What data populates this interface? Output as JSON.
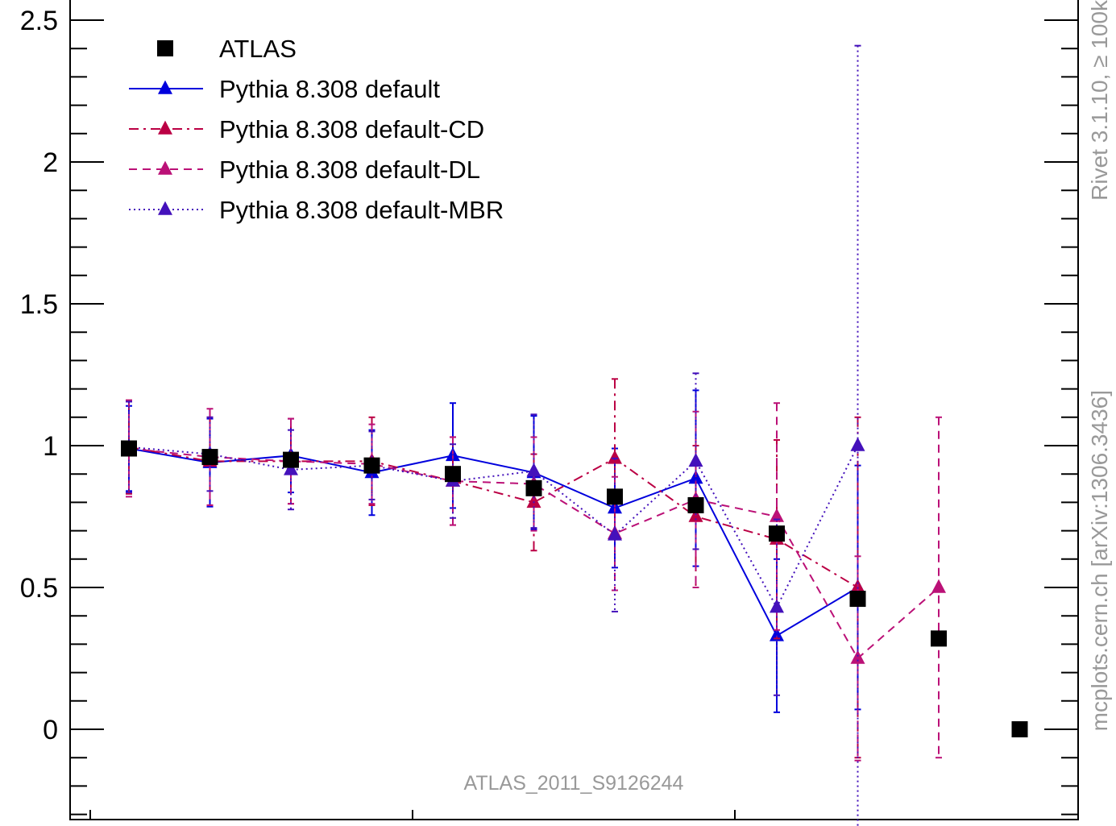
{
  "chart_data": {
    "type": "line",
    "title": "",
    "xlabel": "",
    "ylabel": "",
    "x": [
      1,
      2,
      3,
      4,
      5,
      6,
      7,
      8,
      9,
      10,
      11,
      12
    ],
    "ylim": [
      -0.3,
      2.55
    ],
    "y_ticks": [
      0,
      0.5,
      1,
      1.5,
      2,
      2.5
    ],
    "y_tick_labels": [
      "0",
      "0.5",
      "1",
      "1.5",
      "2",
      "2.5"
    ],
    "grid": false,
    "legend_position": "top-left",
    "annotation": "ATLAS_2011_S9126244",
    "side_labels": [
      "Rivet 3.1.10, ≥ 100k",
      "mcplots.cern.ch [arXiv:1306.3436]"
    ],
    "series": [
      {
        "name": "ATLAS",
        "color": "#000000",
        "marker": "square",
        "line": "none",
        "values": [
          0.99,
          0.96,
          0.95,
          0.93,
          0.9,
          0.85,
          0.82,
          0.79,
          0.69,
          0.46,
          0.32,
          0.0
        ],
        "errors": [
          0,
          0,
          0,
          0,
          0,
          0,
          0,
          0,
          0,
          0,
          0,
          0
        ]
      },
      {
        "name": "Pythia 8.308 default",
        "color": "#0000dd",
        "marker": "triangle",
        "line": "solid",
        "values": [
          0.99,
          0.94,
          0.965,
          0.905,
          0.965,
          0.905,
          0.78,
          0.885,
          0.33,
          0.5,
          null,
          null
        ],
        "errors": [
          0.15,
          0.155,
          0.13,
          0.15,
          0.185,
          0.2,
          0.21,
          0.31,
          0.27,
          0.43,
          null,
          null
        ]
      },
      {
        "name": "Pythia 8.308 default-CD",
        "color": "#bb0044",
        "marker": "triangle",
        "line": "dashdot",
        "values": [
          0.995,
          0.945,
          0.945,
          0.945,
          0.875,
          0.8,
          0.955,
          0.75,
          0.67,
          0.5,
          null,
          null
        ],
        "errors": [
          0.165,
          0.155,
          0.15,
          0.155,
          0.155,
          0.17,
          0.28,
          0.25,
          0.35,
          0.6,
          null,
          null
        ]
      },
      {
        "name": "Pythia 8.308 default-DL",
        "color": "#bb1177",
        "marker": "triangle",
        "line": "dashed",
        "values": [
          0.99,
          0.96,
          0.945,
          0.935,
          0.875,
          0.865,
          0.69,
          0.81,
          0.75,
          0.25,
          0.5,
          null
        ],
        "errors": [
          0.17,
          0.17,
          0.15,
          0.14,
          0.155,
          0.165,
          0.2,
          0.31,
          0.4,
          0.36,
          0.6,
          null
        ]
      },
      {
        "name": "Pythia 8.308 default-MBR",
        "color": "#4411bb",
        "marker": "triangle",
        "line": "dotted",
        "values": [
          0.995,
          0.97,
          0.915,
          0.93,
          0.875,
          0.91,
          0.685,
          0.945,
          0.43,
          1.0,
          null,
          null
        ],
        "errors": [
          0.16,
          0.13,
          0.14,
          0.12,
          0.13,
          0.2,
          0.27,
          0.31,
          0.31,
          1.41,
          null,
          null
        ]
      }
    ]
  }
}
